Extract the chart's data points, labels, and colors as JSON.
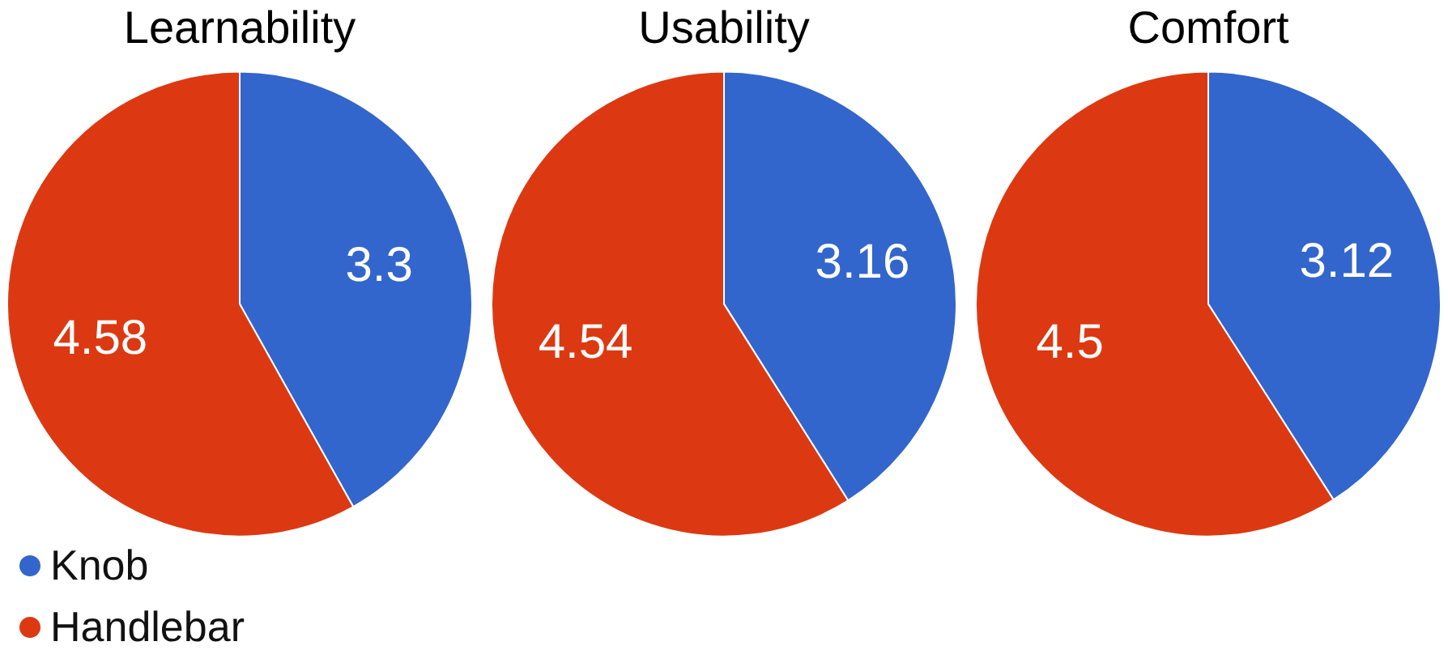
{
  "chart_data": [
    {
      "type": "pie",
      "title": "Learnability",
      "categories": [
        "Knob",
        "Handlebar"
      ],
      "values": [
        3.3,
        4.58
      ],
      "colors": [
        "#3366cc",
        "#dc3912"
      ],
      "data_labels": true,
      "legend": "bottom left"
    },
    {
      "type": "pie",
      "title": "Usability",
      "categories": [
        null,
        null
      ],
      "values": [
        3.16,
        4.54
      ],
      "colors": [
        "#3366cc",
        "#dc3912"
      ],
      "data_labels": true
    },
    {
      "type": "pie",
      "title": "Comfort",
      "categories": [
        null,
        null
      ],
      "values": [
        3.12,
        4.5
      ],
      "colors": [
        "#3366cc",
        "#dc3912"
      ],
      "data_labels": true
    }
  ]
}
